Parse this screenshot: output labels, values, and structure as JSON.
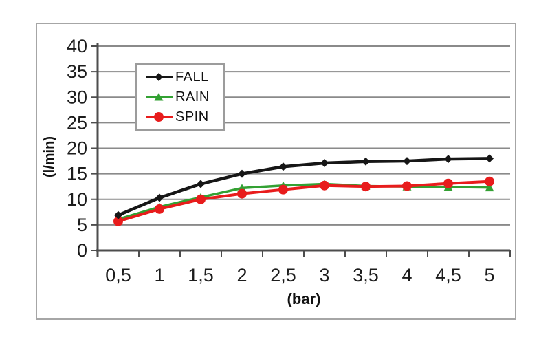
{
  "chart_data": {
    "type": "line",
    "title": "",
    "xlabel": "(bar)",
    "ylabel": "(l/min)",
    "categories": [
      "0,5",
      "1",
      "1,5",
      "2",
      "2,5",
      "3",
      "3,5",
      "4",
      "4,5",
      "5"
    ],
    "x_values": [
      0.5,
      1,
      1.5,
      2,
      2.5,
      3,
      3.5,
      4,
      4.5,
      5
    ],
    "ylim": [
      0,
      40
    ],
    "y_ticks": [
      0,
      5,
      10,
      15,
      20,
      25,
      30,
      35,
      40
    ],
    "grid": "horizontal",
    "legend_position": "top-left-inside",
    "series": [
      {
        "name": "FALL",
        "marker": "diamond",
        "color": "#161616",
        "values": [
          6.9,
          10.3,
          13.0,
          15.0,
          16.4,
          17.1,
          17.4,
          17.5,
          17.9,
          18.0
        ]
      },
      {
        "name": "RAIN",
        "marker": "triangle",
        "color": "#33a133",
        "values": [
          6.1,
          8.5,
          10.4,
          12.2,
          12.7,
          13.0,
          12.6,
          12.5,
          12.4,
          12.3
        ]
      },
      {
        "name": "SPIN",
        "marker": "circle",
        "color": "#e81c1c",
        "values": [
          5.7,
          8.1,
          10.0,
          11.1,
          11.9,
          12.7,
          12.5,
          12.6,
          13.1,
          13.5
        ]
      }
    ],
    "colors": {
      "gridline": "#8a8a8a",
      "axis": "#4d4d4d",
      "text": "#1c1c1c",
      "frame_border": "#a6a6a6"
    }
  }
}
